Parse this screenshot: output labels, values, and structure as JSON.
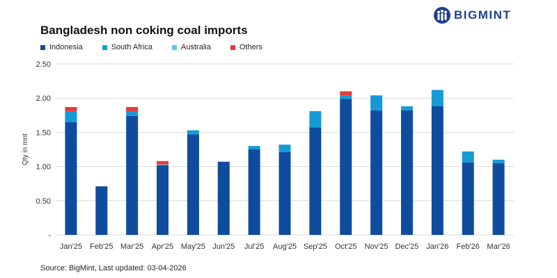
{
  "logo": {
    "text": "BIGMINT",
    "color": "#1f3f8f"
  },
  "source": "Source: BigMint, Last updated: 03-04-2026",
  "chart_data": {
    "type": "bar",
    "stacked": true,
    "title": "Bangladesh non coking coal imports",
    "ylabel": "Qty in mnt",
    "xlabel": "",
    "ylim": [
      0,
      2.5
    ],
    "yticks": [
      0,
      0.5,
      1.0,
      1.5,
      2.0,
      2.5
    ],
    "ytick_labels": [
      "-",
      "0.50",
      "1.00",
      "1.50",
      "2.00",
      "2.50"
    ],
    "grid": true,
    "legend_position": "top-left",
    "categories": [
      "Jan'25",
      "Feb'25",
      "Mar'25",
      "Apr'25",
      "May'25",
      "Jun'25",
      "Jul'25",
      "Aug'25",
      "Sep'25",
      "Oct'25",
      "Nov'25",
      "Dec'25",
      "Jan'26",
      "Feb'26",
      "Mar'26"
    ],
    "series": [
      {
        "name": "Indonesia",
        "color": "#0f4c9e",
        "values": [
          1.65,
          0.71,
          1.74,
          1.02,
          1.47,
          1.07,
          1.25,
          1.21,
          1.57,
          1.99,
          1.82,
          1.82,
          1.88,
          1.06,
          1.05
        ]
      },
      {
        "name": "South Africa",
        "color": "#159ad6",
        "values": [
          0.16,
          0,
          0.06,
          0,
          0.06,
          0,
          0.05,
          0.11,
          0.24,
          0.05,
          0.22,
          0.06,
          0.24,
          0.16,
          0.05
        ]
      },
      {
        "name": "Australia",
        "color": "#5ec8ee",
        "values": [
          0,
          0,
          0,
          0.01,
          0,
          0,
          0,
          0,
          0,
          0,
          0,
          0,
          0,
          0,
          0
        ]
      },
      {
        "name": "Others",
        "color": "#e23c3c",
        "values": [
          0.06,
          0,
          0.07,
          0.05,
          0,
          0,
          0,
          0,
          0,
          0.06,
          0,
          0,
          0,
          0,
          0
        ]
      }
    ]
  }
}
